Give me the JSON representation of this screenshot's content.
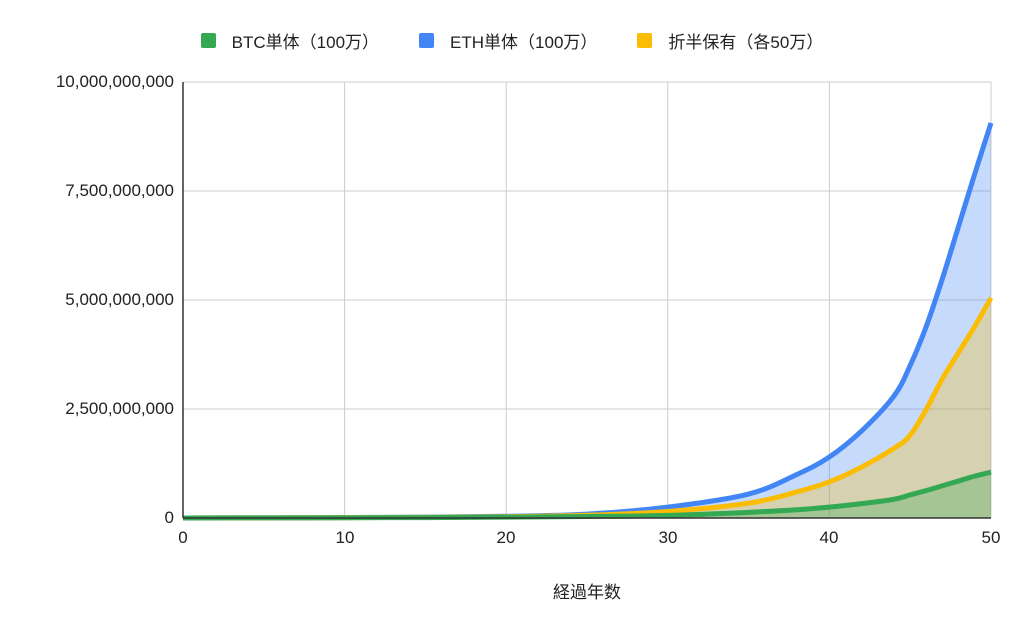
{
  "chart_data": {
    "type": "area",
    "title": "",
    "xlabel": "経過年数",
    "ylabel": "",
    "xlim": [
      0,
      50
    ],
    "ylim": [
      0,
      10000000000
    ],
    "x_ticks": [
      "0",
      "10",
      "20",
      "30",
      "40",
      "50"
    ],
    "y_ticks": [
      "0",
      "2,500,000,000",
      "5,000,000,000",
      "7,500,000,000",
      "10,000,000,000"
    ],
    "grid": true,
    "legend_position": "top",
    "x": [
      0,
      5,
      10,
      15,
      20,
      25,
      30,
      35,
      38,
      40,
      42,
      44,
      45,
      46,
      47,
      48,
      49,
      50
    ],
    "series": [
      {
        "name": "BTC単体（100万）",
        "color": "#34a853",
        "values": [
          1000000,
          3000000,
          6000000,
          10000000,
          20000000,
          35000000,
          60000000,
          130000000,
          190000000,
          250000000,
          330000000,
          430000000,
          530000000,
          630000000,
          740000000,
          850000000,
          960000000,
          1050000000
        ]
      },
      {
        "name": "ETH単体（100万）",
        "color": "#4285f4",
        "values": [
          1000000,
          4000000,
          10000000,
          20000000,
          40000000,
          90000000,
          250000000,
          550000000,
          1000000000,
          1400000000,
          2000000000,
          2800000000,
          3500000000,
          4400000000,
          5500000000,
          6700000000,
          7900000000,
          9060000000
        ]
      },
      {
        "name": "折半保有（各50万）",
        "color": "#fbbc04",
        "values": [
          1000000,
          3500000,
          8000000,
          15000000,
          30000000,
          62000000,
          150000000,
          340000000,
          600000000,
          830000000,
          1170000000,
          1600000000,
          1900000000,
          2500000000,
          3200000000,
          3800000000,
          4400000000,
          5050000000
        ]
      }
    ]
  },
  "legend": [
    {
      "label": "BTC単体（100万）",
      "color": "#34a853"
    },
    {
      "label": "ETH単体（100万）",
      "color": "#4285f4"
    },
    {
      "label": "折半保有（各50万）",
      "color": "#fbbc04"
    }
  ],
  "axis": {
    "x_title": "経過年数",
    "y_labels": [
      "10,000,000,000",
      "7,500,000,000",
      "5,000,000,000",
      "2,500,000,000",
      "0"
    ],
    "x_labels": [
      "0",
      "10",
      "20",
      "30",
      "40",
      "50"
    ]
  }
}
